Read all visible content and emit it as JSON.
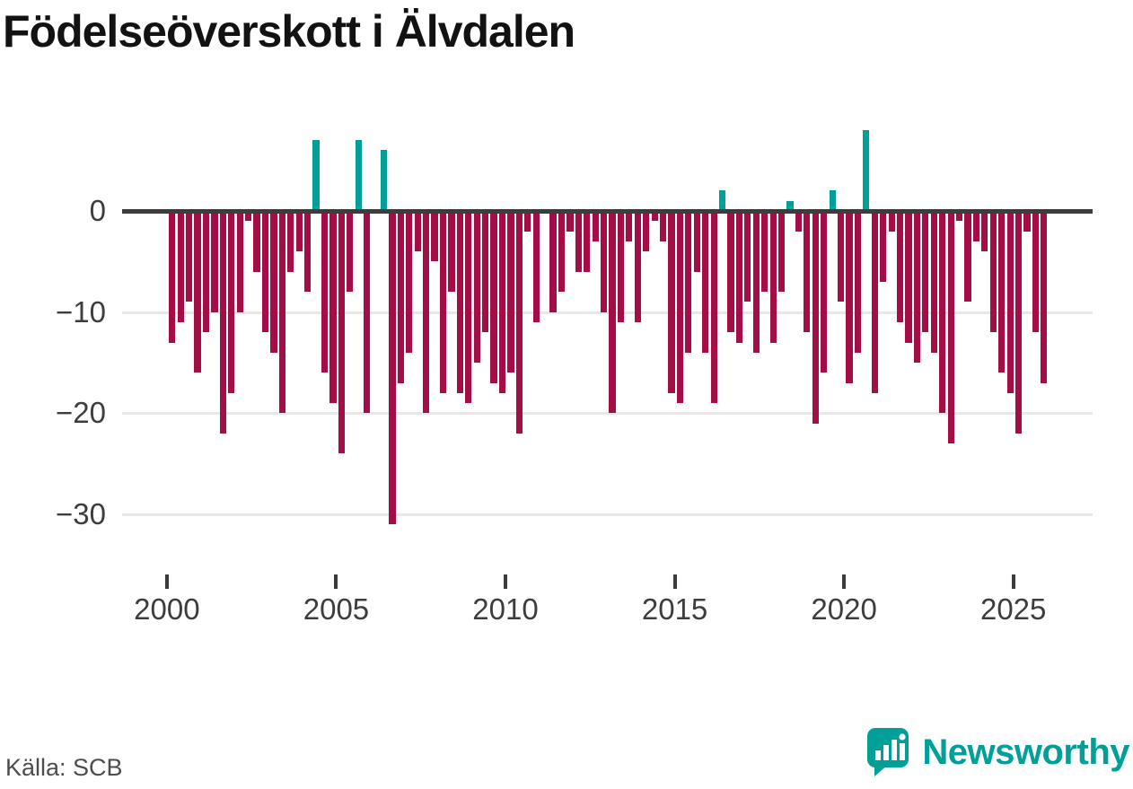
{
  "page": {
    "title": "Födelseöverskott i Älvdalen",
    "source": "Källa: SCB",
    "brand": "Newsworthy"
  },
  "chart_data": {
    "type": "bar",
    "title": "Födelseöverskott i Älvdalen",
    "xlabel": "",
    "ylabel": "",
    "grid": "horizontal",
    "legend": "none",
    "ylim": [
      -34,
      8
    ],
    "yticks": [
      0,
      -10,
      -20,
      -30
    ],
    "ytick_labels": [
      "0",
      "−10",
      "−20",
      "−30"
    ],
    "xticks": [
      2000,
      2005,
      2010,
      2015,
      2020,
      2025
    ],
    "xtick_labels": [
      "2000",
      "2005",
      "2010",
      "2015",
      "2020",
      "2025"
    ],
    "colors": {
      "positive": "#00a099",
      "negative": "#a50d46",
      "zero_line": "#3c3c3c",
      "gridline": "#e7e7e7",
      "tick_label": "#3d3d3d"
    },
    "categories": [
      "2000 Q1",
      "2000 Q2",
      "2000 Q3",
      "2000 Q4",
      "2001 Q1",
      "2001 Q2",
      "2001 Q3",
      "2001 Q4",
      "2002 Q1",
      "2002 Q2",
      "2002 Q3",
      "2002 Q4",
      "2003 Q1",
      "2003 Q2",
      "2003 Q3",
      "2003 Q4",
      "2004 Q1",
      "2004 Q2",
      "2004 Q3",
      "2004 Q4",
      "2005 Q1",
      "2005 Q2",
      "2005 Q3",
      "2005 Q4",
      "2006 Q1",
      "2006 Q2",
      "2006 Q3",
      "2006 Q4",
      "2007 Q1",
      "2007 Q2",
      "2007 Q3",
      "2007 Q4",
      "2008 Q1",
      "2008 Q2",
      "2008 Q3",
      "2008 Q4",
      "2009 Q1",
      "2009 Q2",
      "2009 Q3",
      "2009 Q4",
      "2010 Q1",
      "2010 Q2",
      "2010 Q3",
      "2010 Q4",
      "2011 Q1",
      "2011 Q2",
      "2011 Q3",
      "2011 Q4",
      "2012 Q1",
      "2012 Q2",
      "2012 Q3",
      "2012 Q4",
      "2013 Q1",
      "2013 Q2",
      "2013 Q3",
      "2013 Q4",
      "2014 Q1",
      "2014 Q2",
      "2014 Q3",
      "2014 Q4",
      "2015 Q1",
      "2015 Q2",
      "2015 Q3",
      "2015 Q4",
      "2016 Q1",
      "2016 Q2",
      "2016 Q3",
      "2016 Q4",
      "2017 Q1",
      "2017 Q2",
      "2017 Q3",
      "2017 Q4",
      "2018 Q1",
      "2018 Q2",
      "2018 Q3",
      "2018 Q4",
      "2019 Q1",
      "2019 Q2",
      "2019 Q3",
      "2019 Q4",
      "2020 Q1",
      "2020 Q2",
      "2020 Q3",
      "2020 Q4",
      "2021 Q1",
      "2021 Q2",
      "2021 Q3",
      "2021 Q4",
      "2022 Q1",
      "2022 Q2",
      "2022 Q3",
      "2022 Q4",
      "2023 Q1",
      "2023 Q2",
      "2023 Q3",
      "2023 Q4",
      "2024 Q1",
      "2024 Q2",
      "2024 Q3",
      "2024 Q4",
      "2025 Q1",
      "2025 Q2",
      "2025 Q3",
      "2025 Q4"
    ],
    "values": [
      -13,
      -11,
      -9,
      -16,
      -12,
      -10,
      -22,
      -18,
      -10,
      -1,
      -6,
      -12,
      -14,
      -20,
      -6,
      -4,
      -8,
      7,
      -16,
      -19,
      -24,
      -8,
      7,
      -20,
      0,
      6,
      -31,
      -17,
      -14,
      -4,
      -20,
      -5,
      -18,
      -8,
      -18,
      -19,
      -15,
      -12,
      -17,
      -18,
      -16,
      -22,
      -2,
      -11,
      0,
      -10,
      -8,
      -2,
      -6,
      -6,
      -3,
      -10,
      -20,
      -11,
      -3,
      -11,
      -4,
      -1,
      -3,
      -18,
      -19,
      -14,
      -6,
      -14,
      -19,
      2,
      -12,
      -13,
      -9,
      -14,
      -8,
      -13,
      -8,
      1,
      -2,
      -12,
      -21,
      -16,
      2,
      -9,
      -17,
      -14,
      8,
      -18,
      -7,
      -2,
      -11,
      -13,
      -15,
      -12,
      -14,
      -20,
      -23,
      -1,
      -9,
      -3,
      -4,
      -12,
      -16,
      -18,
      -22,
      -2,
      -12,
      -17
    ]
  }
}
